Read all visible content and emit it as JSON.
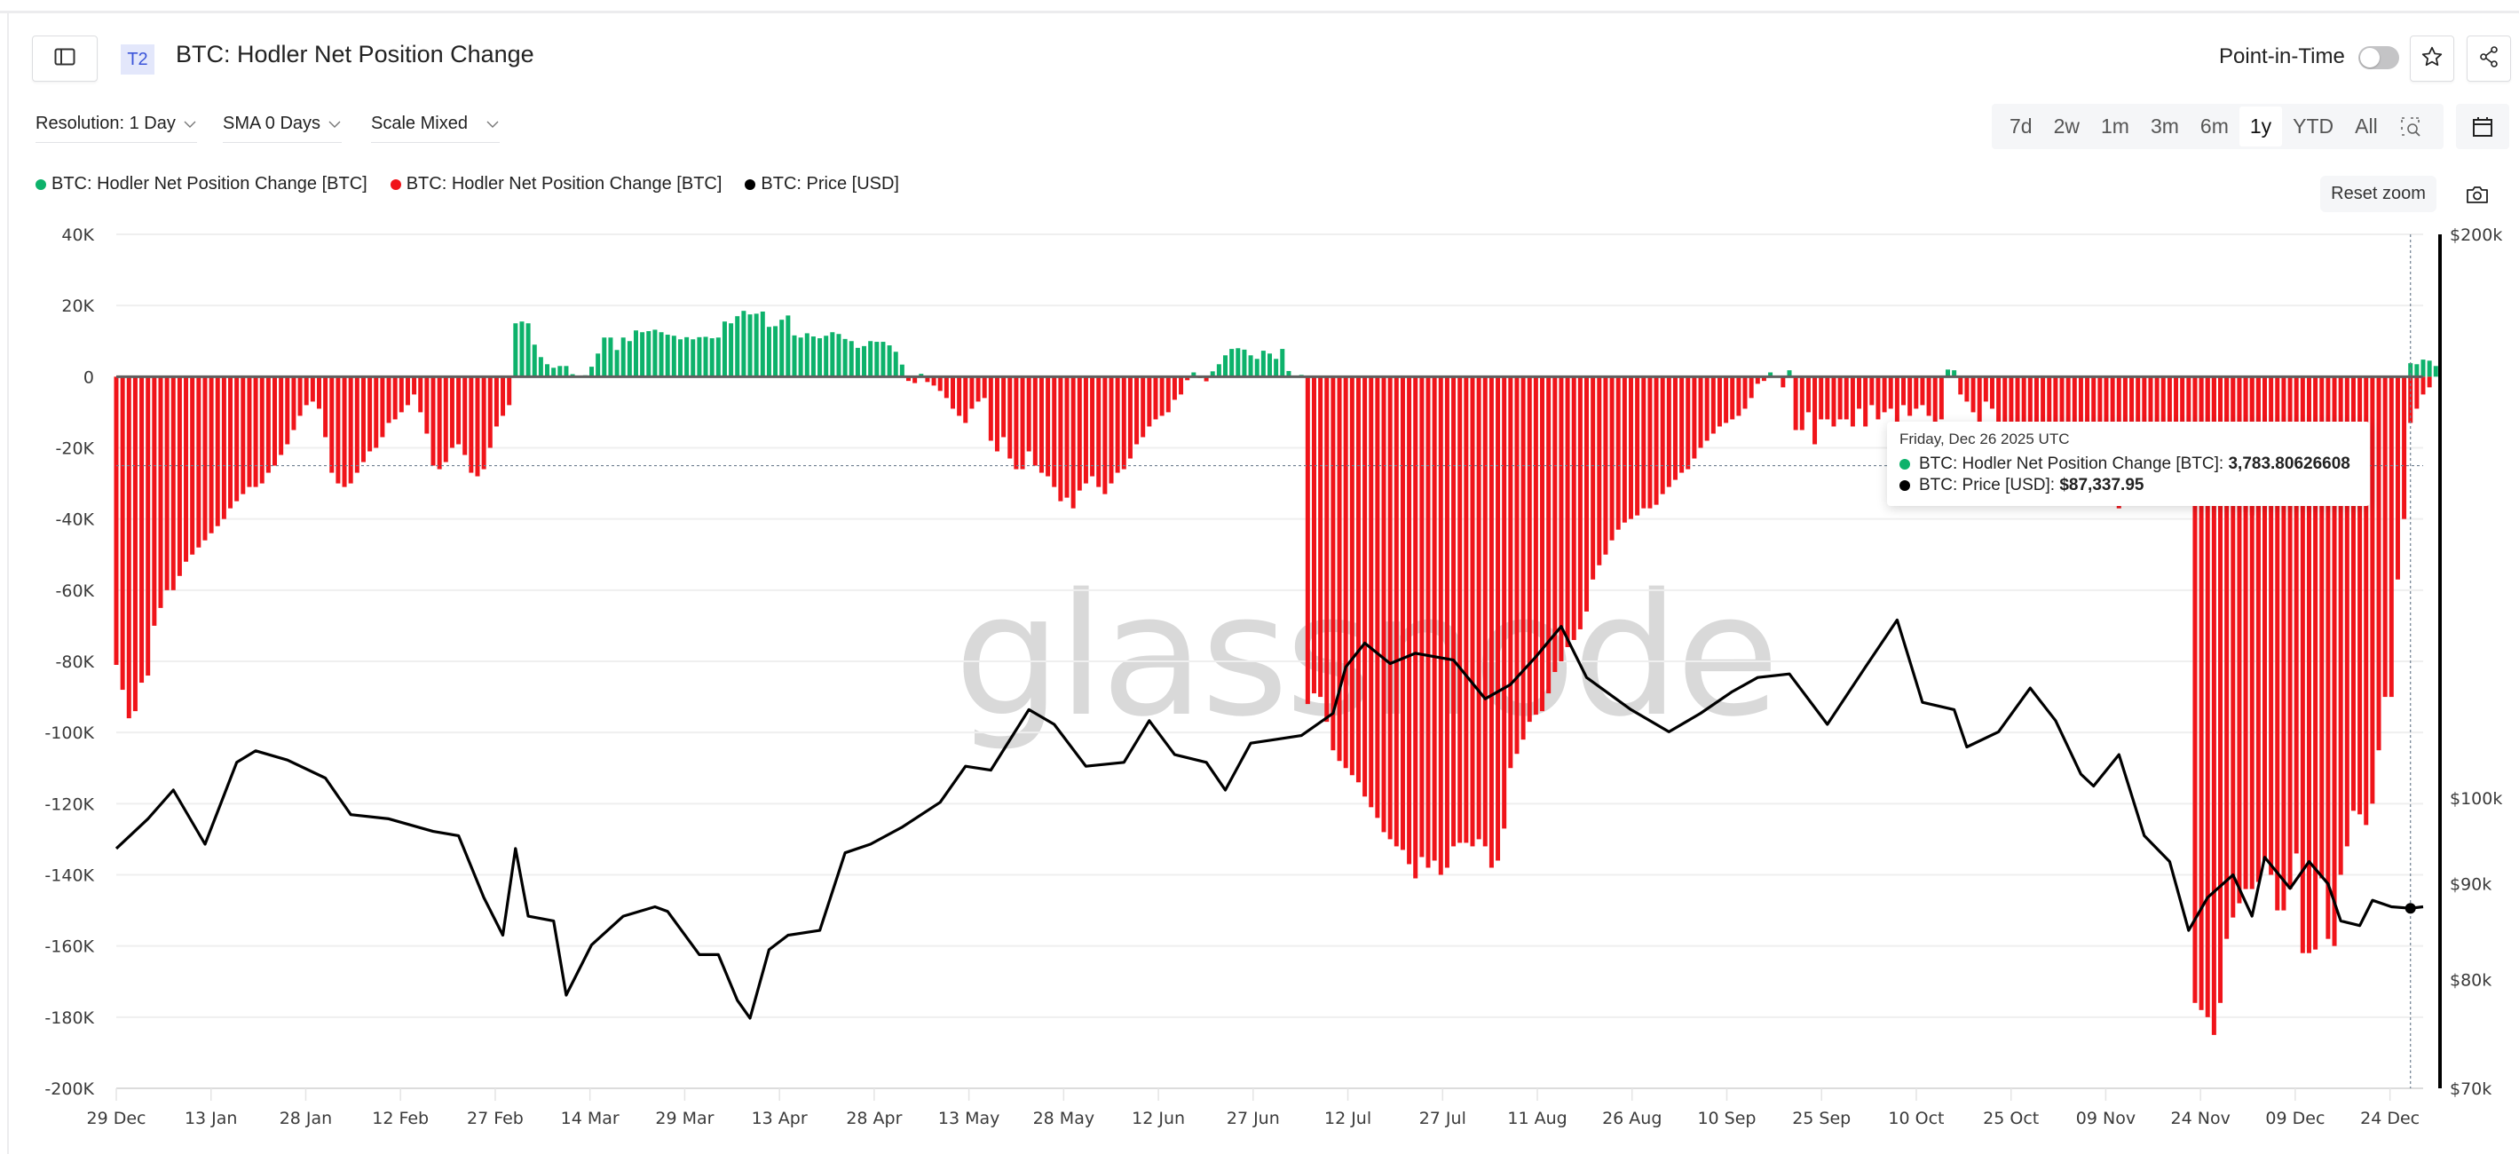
{
  "header": {
    "badge": "T2",
    "title": "BTC: Hodler Net Position Change",
    "point_in_time_label": "Point-in-Time",
    "point_in_time_enabled": false
  },
  "controls": {
    "resolution": "Resolution: 1 Day",
    "sma": "SMA 0 Days",
    "scale": "Scale Mixed"
  },
  "ranges": [
    {
      "label": "7d",
      "selected": false
    },
    {
      "label": "2w",
      "selected": false
    },
    {
      "label": "1m",
      "selected": false
    },
    {
      "label": "3m",
      "selected": false
    },
    {
      "label": "6m",
      "selected": false
    },
    {
      "label": "1y",
      "selected": true
    },
    {
      "label": "YTD",
      "selected": false
    },
    {
      "label": "All",
      "selected": false
    }
  ],
  "reset_zoom_label": "Reset zoom",
  "watermark": "glassnode",
  "legend": [
    {
      "label": "BTC: Hodler Net Position Change [BTC]",
      "color": "#0db26b"
    },
    {
      "label": "BTC: Hodler Net Position Change [BTC]",
      "color": "#f0141a"
    },
    {
      "label": "BTC: Price [USD]",
      "color": "#000000"
    }
  ],
  "tooltip": {
    "date": "Friday, Dec 26 2025 UTC",
    "rows": [
      {
        "label": "BTC: Hodler Net Position Change [BTC]: ",
        "value": "3,783.80626608",
        "color": "#0db26b"
      },
      {
        "label": "BTC: Price [USD]: ",
        "value": "$87,337.95",
        "color": "#000000"
      }
    ]
  },
  "colors": {
    "positive": "#0db26b",
    "negative": "#f0141a",
    "price": "#000000",
    "grid": "#efefef",
    "zero_line": "#5f5f5f"
  },
  "chart_data": {
    "type": "bar+line",
    "title": "BTC: Hodler Net Position Change",
    "x_start": "2024-12-29",
    "x_end": "2025-12-28",
    "xticks": [
      "29 Dec",
      "13 Jan",
      "28 Jan",
      "12 Feb",
      "27 Feb",
      "14 Mar",
      "29 Mar",
      "13 Apr",
      "28 Apr",
      "13 May",
      "28 May",
      "12 Jun",
      "27 Jun",
      "12 Jul",
      "27 Jul",
      "11 Aug",
      "26 Aug",
      "10 Sep",
      "25 Sep",
      "10 Oct",
      "25 Oct",
      "09 Nov",
      "24 Nov",
      "09 Dec",
      "24 Dec"
    ],
    "y_left": {
      "label": "Hodler Net Position Change [BTC]",
      "ticks": [
        "40K",
        "20K",
        "0",
        "-20K",
        "-40K",
        "-60K",
        "-80K",
        "-100K",
        "-120K",
        "-140K",
        "-160K",
        "-180K",
        "-200K"
      ],
      "range": [
        -200000,
        40000
      ]
    },
    "y_right": {
      "label": "Price [USD]",
      "scale": "log",
      "ticks": [
        "$200k",
        "$100k",
        "$90k",
        "$80k",
        "$70k"
      ],
      "range": [
        70000,
        200000
      ]
    },
    "grid": true,
    "crosshair": {
      "date": "2025-12-26",
      "y_value": -25000
    },
    "series": [
      {
        "name": "BTC: Hodler Net Position Change [BTC]",
        "type": "bar",
        "unit": "BTC",
        "note": "daily values, positive green / negative red",
        "segments": [
          {
            "from": "2024-12-29",
            "values": [
              -81000,
              -88000,
              -96000,
              -94000,
              -86000,
              -84000,
              -70000,
              -65000,
              -60000,
              -60000,
              -56000,
              -52000,
              -50000,
              -48000,
              -46000,
              -44000,
              -42000,
              -40000,
              -37000,
              -35000,
              -33000,
              -31000,
              -31000,
              -30000,
              -27000,
              -25000,
              -22000,
              -19000,
              -15000,
              -11000,
              -8000,
              -7000,
              -9000,
              -17000,
              -27000,
              -30000,
              -31000,
              -30000,
              -27000,
              -24000,
              -21000,
              -20000,
              -17000,
              -13000,
              -12000,
              -10000
            ]
          },
          {
            "from": "2025-02-13",
            "values": [
              -8000,
              -5000,
              -10000,
              -16000,
              -25000,
              -26000,
              -24000,
              -20000,
              -19000,
              -22000,
              -27000,
              -28000,
              -26000,
              -20000,
              -14000,
              -11000,
              -8000
            ]
          },
          {
            "from": "2025-03-02",
            "values": [
              15000,
              15500,
              15000,
              9000,
              5500,
              3500,
              2500,
              3000,
              3000,
              700,
              0,
              400,
              2800,
              6500,
              11000,
              11000,
              7500,
              11000,
              10000,
              13000,
              12500,
              12800,
              13200,
              12500,
              11800,
              11500,
              10500,
              11100,
              10500,
              11100,
              11200,
              10800,
              11000,
              15500,
              15000,
              17000,
              18500,
              17500,
              17700,
              18300,
              14000,
              14200,
              16000,
              17200,
              11600,
              11000,
              12200,
              11300,
              10800,
              11500,
              12500,
              12000,
              10600,
              10000,
              8100,
              8600,
              10000,
              9800,
              9800,
              8800,
              7000,
              3400
            ]
          },
          {
            "from": "2025-05-03",
            "values": [
              -1200,
              -1800,
              800,
              -1500,
              -2500,
              -4000,
              -6000,
              -9000,
              -11000,
              -13000,
              -9000,
              -7000,
              -6000,
              -18000,
              -21000,
              -17000,
              -23000,
              -26000,
              -26000,
              -21000,
              -25000,
              -27000,
              -28000,
              -31000,
              -35000,
              -34000,
              -37000,
              -32000,
              -30000,
              -28000,
              -31000,
              -33000,
              -30000,
              -27000,
              -26000,
              -23000,
              -19000,
              -17000,
              -14000,
              -12000,
              -11000,
              -10000,
              -6500,
              -5000,
              -1000
            ]
          },
          {
            "from": "2025-06-17",
            "values": [
              1200,
              -400,
              -1300,
              1500,
              3500,
              6000,
              7800,
              8000,
              7600,
              6000,
              5000,
              7300,
              6500,
              5000,
              7800,
              1600,
              0,
              500
            ]
          },
          {
            "from": "2025-07-05",
            "values": [
              -92000,
              -89000,
              -90000,
              -97000,
              -105000,
              -108000,
              -110000,
              -112000,
              -114000,
              -118000,
              -121000,
              -124000,
              -128000,
              -130000,
              -132000,
              -133000,
              -137000,
              -141000,
              -135000,
              -138000,
              -136000,
              -140000,
              -138000,
              -132000,
              -131000,
              -131000,
              -132000,
              -130000,
              -132000,
              -138000,
              -136000,
              -127000,
              -110000,
              -106000,
              -102000,
              -97000,
              -95000,
              -94000,
              -89000,
              -83000,
              -80000,
              -76000,
              -74000,
              -71000,
              -66000,
              -57000,
              -53000,
              -50000,
              -46000,
              -43000,
              -41000,
              -40000,
              -39000,
              -37000,
              -37000,
              -36000,
              -33000,
              -31000,
              -29000,
              -27000,
              -26000,
              -23000,
              -20000,
              -18000,
              -16000,
              -14000,
              -13000,
              -12000,
              -11000,
              -9000,
              -6000,
              -2000
            ]
          },
          {
            "from": "2025-09-14",
            "values": [
              -500,
              -1200,
              1200,
              300,
              -3000,
              1800,
              -15000,
              -15000,
              -10000,
              -19000,
              -12000,
              -12000,
              -14000,
              -12000,
              -12000,
              -14000,
              -9000,
              -14000,
              -8000,
              -12000,
              -10000,
              -9000,
              -13000,
              -8000,
              -11000,
              -9000,
              -8000,
              -11000,
              -14000,
              -12000,
              2000,
              1800,
              -5000,
              -7000,
              -10000,
              -13000,
              -7000,
              -9000,
              -15000,
              -16000,
              -13000,
              -14000,
              -17000,
              -22000,
              -19000,
              -25000,
              -24000,
              -28000,
              -23000,
              -31000,
              -26000,
              -26000,
              -29000,
              -29000,
              -35000,
              -32000,
              -34000,
              -37000,
              -31000,
              -29000,
              -27000,
              -25000,
              -27000,
              -25000,
              -28000,
              -32000,
              -36000,
              -28000,
              -32000,
              -30000,
              -33000,
              -36000,
              -32000,
              -27000,
              -25000,
              -30000,
              -36000,
              -38000,
              -39000,
              -60000
            ]
          },
          {
            "from": "2025-11-22",
            "values": [
              -176000,
              -178000,
              -180000,
              -185000,
              -176000,
              -158000,
              -152000,
              -148000,
              -144000,
              -144000,
              -142000,
              -136000,
              -140000,
              -150000,
              -150000,
              -144000,
              -134000,
              -162000,
              -162000,
              -161000,
              -141000,
              -158000,
              -160000,
              -140000,
              -132000,
              -122000,
              -123000,
              -126000,
              -120000,
              -105000,
              -90000,
              -90000,
              -57000,
              -40000,
              -13000,
              -9000,
              -5000,
              -3000
            ]
          },
          {
            "from": "2025-12-26",
            "values": [
              3784,
              3500,
              4800,
              4500,
              3000
            ]
          }
        ]
      },
      {
        "name": "BTC: Price [USD]",
        "type": "line",
        "unit": "USD",
        "note": "approximate weekly readings",
        "points": [
          [
            "2024-12-29",
            94000
          ],
          [
            "2025-01-03",
            97500
          ],
          [
            "2025-01-07",
            101000
          ],
          [
            "2025-01-12",
            94500
          ],
          [
            "2025-01-17",
            104500
          ],
          [
            "2025-01-20",
            106000
          ],
          [
            "2025-01-25",
            104800
          ],
          [
            "2025-01-31",
            102500
          ],
          [
            "2025-02-04",
            98000
          ],
          [
            "2025-02-10",
            97500
          ],
          [
            "2025-02-17",
            96000
          ],
          [
            "2025-02-21",
            95500
          ],
          [
            "2025-02-25",
            88500
          ],
          [
            "2025-02-28",
            84500
          ],
          [
            "2025-03-02",
            94000
          ],
          [
            "2025-03-04",
            86500
          ],
          [
            "2025-03-08",
            86000
          ],
          [
            "2025-03-10",
            78500
          ],
          [
            "2025-03-14",
            83500
          ],
          [
            "2025-03-19",
            86500
          ],
          [
            "2025-03-24",
            87500
          ],
          [
            "2025-03-26",
            87000
          ],
          [
            "2025-03-31",
            82500
          ],
          [
            "2025-04-03",
            82500
          ],
          [
            "2025-04-06",
            78000
          ],
          [
            "2025-04-08",
            76300
          ],
          [
            "2025-04-11",
            83000
          ],
          [
            "2025-04-14",
            84500
          ],
          [
            "2025-04-19",
            85000
          ],
          [
            "2025-04-23",
            93500
          ],
          [
            "2025-04-27",
            94500
          ],
          [
            "2025-05-02",
            96500
          ],
          [
            "2025-05-08",
            99500
          ],
          [
            "2025-05-12",
            104000
          ],
          [
            "2025-05-16",
            103500
          ],
          [
            "2025-05-22",
            111500
          ],
          [
            "2025-05-26",
            109500
          ],
          [
            "2025-05-31",
            104000
          ],
          [
            "2025-06-06",
            104500
          ],
          [
            "2025-06-10",
            110000
          ],
          [
            "2025-06-14",
            105500
          ],
          [
            "2025-06-19",
            104500
          ],
          [
            "2025-06-22",
            101000
          ],
          [
            "2025-06-26",
            107000
          ],
          [
            "2025-06-30",
            107500
          ],
          [
            "2025-07-04",
            108000
          ],
          [
            "2025-07-09",
            111000
          ],
          [
            "2025-07-11",
            117500
          ],
          [
            "2025-07-14",
            121000
          ],
          [
            "2025-07-18",
            118000
          ],
          [
            "2025-07-22",
            119500
          ],
          [
            "2025-07-28",
            118500
          ],
          [
            "2025-08-02",
            113000
          ],
          [
            "2025-08-06",
            115000
          ],
          [
            "2025-08-10",
            119000
          ],
          [
            "2025-08-14",
            123500
          ],
          [
            "2025-08-18",
            116000
          ],
          [
            "2025-08-25",
            111500
          ],
          [
            "2025-08-31",
            108500
          ],
          [
            "2025-09-05",
            111000
          ],
          [
            "2025-09-10",
            114000
          ],
          [
            "2025-09-14",
            116000
          ],
          [
            "2025-09-19",
            116500
          ],
          [
            "2025-09-25",
            109500
          ],
          [
            "2025-10-01",
            117500
          ],
          [
            "2025-10-06",
            124500
          ],
          [
            "2025-10-10",
            112500
          ],
          [
            "2025-10-15",
            111500
          ],
          [
            "2025-10-17",
            106500
          ],
          [
            "2025-10-22",
            108500
          ],
          [
            "2025-10-27",
            114500
          ],
          [
            "2025-10-31",
            110000
          ],
          [
            "2025-11-04",
            103000
          ],
          [
            "2025-11-06",
            101500
          ],
          [
            "2025-11-10",
            105500
          ],
          [
            "2025-11-14",
            95500
          ],
          [
            "2025-11-18",
            92500
          ],
          [
            "2025-11-21",
            85000
          ],
          [
            "2025-11-24",
            88500
          ],
          [
            "2025-11-28",
            91000
          ],
          [
            "2025-12-01",
            86500
          ],
          [
            "2025-12-03",
            93000
          ],
          [
            "2025-12-07",
            89500
          ],
          [
            "2025-12-10",
            92500
          ],
          [
            "2025-12-13",
            90000
          ],
          [
            "2025-12-15",
            86000
          ],
          [
            "2025-12-18",
            85500
          ],
          [
            "2025-12-20",
            88200
          ],
          [
            "2025-12-23",
            87500
          ],
          [
            "2025-12-26",
            87338
          ],
          [
            "2025-12-28",
            87500
          ]
        ]
      }
    ]
  }
}
